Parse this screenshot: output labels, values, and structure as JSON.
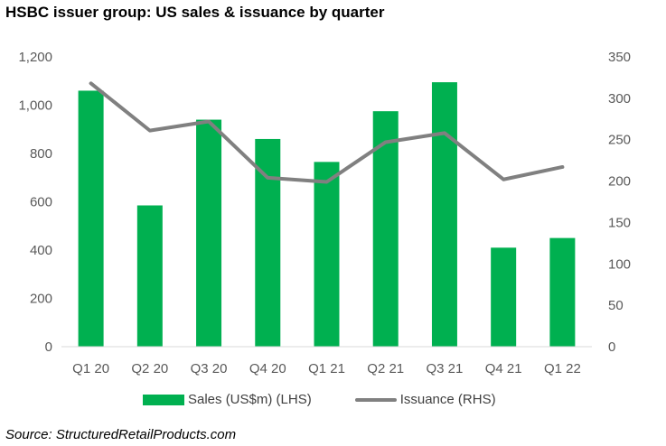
{
  "title": "HSBC issuer group: US sales & issuance by quarter",
  "source": "Source: StructuredRetailProducts.com",
  "colors": {
    "bar": "#00b050",
    "line": "#808080",
    "axis": "#d9d9d9"
  },
  "chart_data": {
    "type": "bar",
    "title": "HSBC issuer group: US sales & issuance by quarter",
    "categories": [
      "Q1 20",
      "Q2 20",
      "Q3 20",
      "Q4 20",
      "Q1 21",
      "Q2 21",
      "Q3 21",
      "Q4 21",
      "Q1 22"
    ],
    "series": [
      {
        "name": "Sales (US$m) (LHS)",
        "type": "bar",
        "axis": "left",
        "values": [
          1060,
          585,
          940,
          860,
          765,
          975,
          1095,
          410,
          450
        ]
      },
      {
        "name": "Issuance (RHS)",
        "type": "line",
        "axis": "right",
        "values": [
          318,
          261,
          272,
          204,
          199,
          247,
          258,
          202,
          217
        ]
      }
    ],
    "ylim_left": [
      0,
      1200
    ],
    "yticks_left": [
      "0",
      "200",
      "400",
      "600",
      "800",
      "1,000",
      "1,200"
    ],
    "ylim_right": [
      0,
      350
    ],
    "yticks_right": [
      "0",
      "50",
      "100",
      "150",
      "200",
      "250",
      "300",
      "350"
    ],
    "legend": "bottom",
    "grid": false
  }
}
